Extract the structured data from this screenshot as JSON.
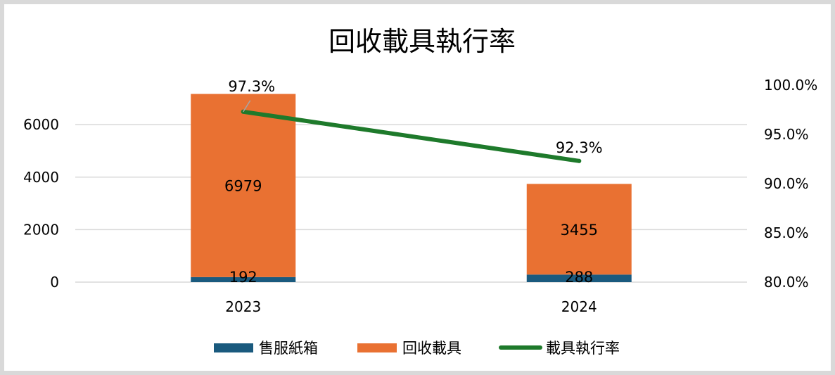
{
  "chart_data": {
    "type": "bar",
    "stacked": true,
    "title": "回收載具執行率",
    "categories": [
      "2023",
      "2024"
    ],
    "series": [
      {
        "name": "售服紙箱",
        "type": "bar",
        "axis": "left",
        "values": [
          192,
          288
        ],
        "color": "#1a5a7e"
      },
      {
        "name": "回收載具",
        "type": "bar",
        "axis": "left",
        "values": [
          6979,
          3455
        ],
        "color": "#e97132"
      },
      {
        "name": "載具執行率",
        "type": "line",
        "axis": "right",
        "values": [
          97.3,
          92.3
        ],
        "color": "#1e7a2b"
      }
    ],
    "data_labels": {
      "bar_bottom": [
        "192",
        "288"
      ],
      "bar_top": [
        "6979",
        "3455"
      ],
      "line": [
        "97.3%",
        "92.3%"
      ]
    },
    "y_left": {
      "min": 0,
      "max": 7000,
      "ticks": [
        0,
        2000,
        4000,
        6000
      ],
      "tick_labels": [
        "0",
        "2000",
        "4000",
        "6000"
      ]
    },
    "y_right": {
      "min": 80,
      "max": 100,
      "ticks": [
        80,
        85,
        90,
        95,
        100
      ],
      "tick_labels": [
        "80.0%",
        "85.0%",
        "90.0%",
        "95.0%",
        "100.0%"
      ]
    },
    "grid": true,
    "legend": "bottom"
  }
}
